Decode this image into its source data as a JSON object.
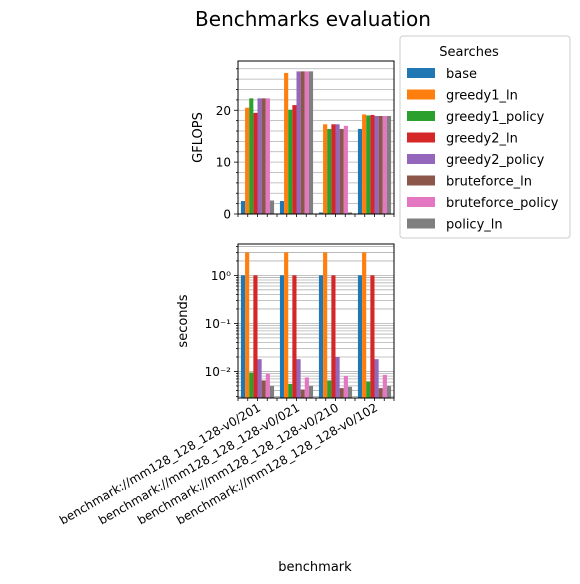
{
  "chart_data": {
    "type": "bar",
    "title": "Benchmarks evaluation",
    "xlabel": "benchmark",
    "categories": [
      "benchmark://mm128_128_128-v0/201",
      "benchmark://mm128_128_128-v0/021",
      "benchmark://mm128_128_128-v0/210",
      "benchmark://mm128_128_128-v0/102"
    ],
    "legend": {
      "title": "Searches",
      "placement": "outside-top-right"
    },
    "series": [
      {
        "name": "base",
        "color": "#1f77b4"
      },
      {
        "name": "greedy1_ln",
        "color": "#ff7f0e"
      },
      {
        "name": "greedy1_policy",
        "color": "#2ca02c"
      },
      {
        "name": "greedy2_ln",
        "color": "#d62728"
      },
      {
        "name": "greedy2_policy",
        "color": "#9467bd"
      },
      {
        "name": "bruteforce_ln",
        "color": "#8c564b"
      },
      {
        "name": "bruteforce_policy",
        "color": "#e377c2"
      },
      {
        "name": "policy_ln",
        "color": "#7f7f7f"
      }
    ],
    "panels": [
      {
        "ylabel": "GFLOPS",
        "scale": "linear",
        "ylim": [
          0,
          29.5
        ],
        "yticks": [
          0,
          10,
          20
        ],
        "ytick_labels": [
          "0",
          "10",
          "20"
        ],
        "grid": true,
        "values": [
          [
            2.5,
            20.5,
            22.3,
            19.5,
            22.3,
            22.3,
            22.3,
            2.6
          ],
          [
            2.5,
            27.2,
            20.1,
            21.0,
            27.5,
            27.5,
            27.5,
            27.5
          ],
          [
            0.3,
            17.3,
            16.4,
            17.3,
            17.3,
            16.4,
            17.0,
            0.3
          ],
          [
            16.4,
            19.2,
            19.0,
            19.1,
            18.9,
            18.9,
            18.9,
            18.9
          ]
        ]
      },
      {
        "ylabel": "seconds",
        "scale": "log",
        "ylim": [
          0.0028,
          4.5
        ],
        "yticks": [
          0.01,
          0.1,
          1
        ],
        "ytick_labels": [
          "10⁻²",
          "10⁻¹",
          "10⁰"
        ],
        "grid": true,
        "values": [
          [
            1.0,
            3.0,
            0.0095,
            1.0,
            0.018,
            0.0065,
            0.009,
            0.005
          ],
          [
            1.0,
            3.0,
            0.0055,
            1.0,
            0.018,
            0.0042,
            0.0075,
            0.005
          ],
          [
            1.0,
            3.0,
            0.0065,
            1.0,
            0.02,
            0.0045,
            0.008,
            0.0048
          ],
          [
            1.0,
            3.0,
            0.0062,
            1.0,
            0.018,
            0.0045,
            0.0085,
            0.005
          ]
        ]
      }
    ]
  }
}
